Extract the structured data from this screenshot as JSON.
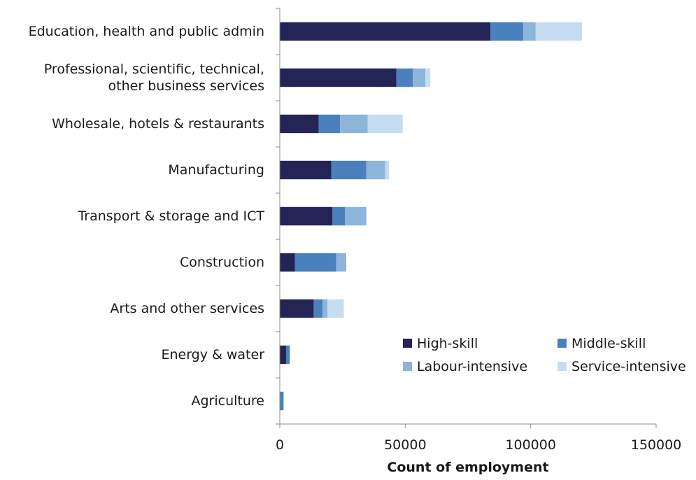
{
  "chart_data": {
    "type": "bar",
    "orientation": "horizontal",
    "stacked": true,
    "categories": [
      [
        "Education, health and public admin"
      ],
      [
        "Professional, scientific, technical,",
        "other business services"
      ],
      [
        "Wholesale, hotels & restaurants"
      ],
      [
        "Manufacturing"
      ],
      [
        "Transport & storage and ICT"
      ],
      [
        "Construction"
      ],
      [
        "Arts and other services"
      ],
      [
        "Energy & water"
      ],
      [
        "Agriculture"
      ]
    ],
    "series": [
      {
        "name": "High-skill",
        "color": "#252456",
        "values": [
          84000,
          46500,
          15500,
          20500,
          21000,
          6000,
          13500,
          2500,
          0
        ]
      },
      {
        "name": "Middle-skill",
        "color": "#4a80bb",
        "values": [
          13000,
          6500,
          8500,
          14000,
          5000,
          16500,
          3500,
          1500,
          1500
        ]
      },
      {
        "name": "Labour-intensive",
        "color": "#8db4db",
        "values": [
          5000,
          5000,
          11000,
          7500,
          8500,
          4000,
          2000,
          0,
          0
        ]
      },
      {
        "name": "Service-intensive",
        "color": "#c6ddf1",
        "values": [
          18500,
          2000,
          14000,
          1500,
          0,
          0,
          6500,
          0,
          0
        ]
      }
    ],
    "xlabel": "Count of employment",
    "xlim": [
      0,
      150000
    ],
    "xticks": [
      "0",
      "50000",
      "100000",
      "150000"
    ],
    "xtick_values": [
      0,
      50000,
      100000,
      150000
    ],
    "grid": false,
    "legend_position": "bottom-right, inside plot area"
  }
}
